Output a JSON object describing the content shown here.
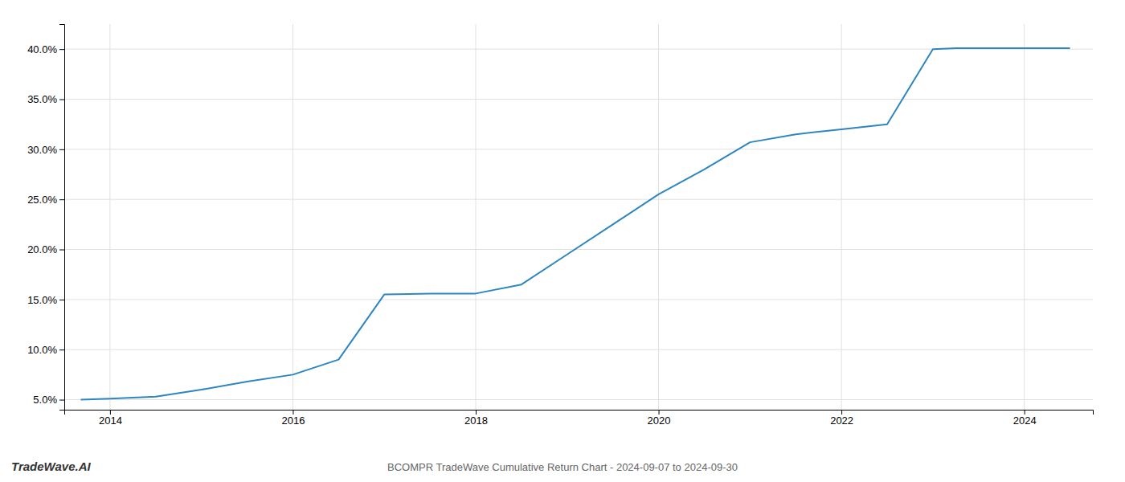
{
  "chart_data": {
    "type": "line",
    "title": "BCOMPR TradeWave Cumulative Return Chart - 2024-09-07 to 2024-09-30",
    "annotations": [
      "TradeWave.AI"
    ],
    "x": [
      2013.68,
      2014.0,
      2014.5,
      2015.0,
      2015.5,
      2016.0,
      2016.5,
      2017.0,
      2017.5,
      2018.0,
      2018.5,
      2019.0,
      2019.5,
      2020.0,
      2020.5,
      2021.0,
      2021.5,
      2022.0,
      2022.5,
      2023.0,
      2023.25,
      2023.75,
      2024.0,
      2024.5
    ],
    "values": [
      5.0,
      5.1,
      5.3,
      6.0,
      6.8,
      7.5,
      9.0,
      15.5,
      15.6,
      15.6,
      16.5,
      19.5,
      22.5,
      25.5,
      28.0,
      30.7,
      31.5,
      32.0,
      32.5,
      40.0,
      40.1,
      40.1,
      40.1,
      40.1
    ],
    "color": "#2e86c1",
    "xlim": [
      2013.5,
      2024.75
    ],
    "ylim": [
      4.0,
      42.5
    ],
    "xticks": [
      2014,
      2016,
      2018,
      2020,
      2022,
      2024
    ],
    "yticks": [
      {
        "value": 5.0,
        "label": "5.0%"
      },
      {
        "value": 10.0,
        "label": "10.0%"
      },
      {
        "value": 15.0,
        "label": "15.0%"
      },
      {
        "value": 20.0,
        "label": "20.0%"
      },
      {
        "value": 25.0,
        "label": "25.0%"
      },
      {
        "value": 30.0,
        "label": "30.0%"
      },
      {
        "value": 35.0,
        "label": "35.0%"
      },
      {
        "value": 40.0,
        "label": "40.0%"
      }
    ],
    "grid": true
  }
}
